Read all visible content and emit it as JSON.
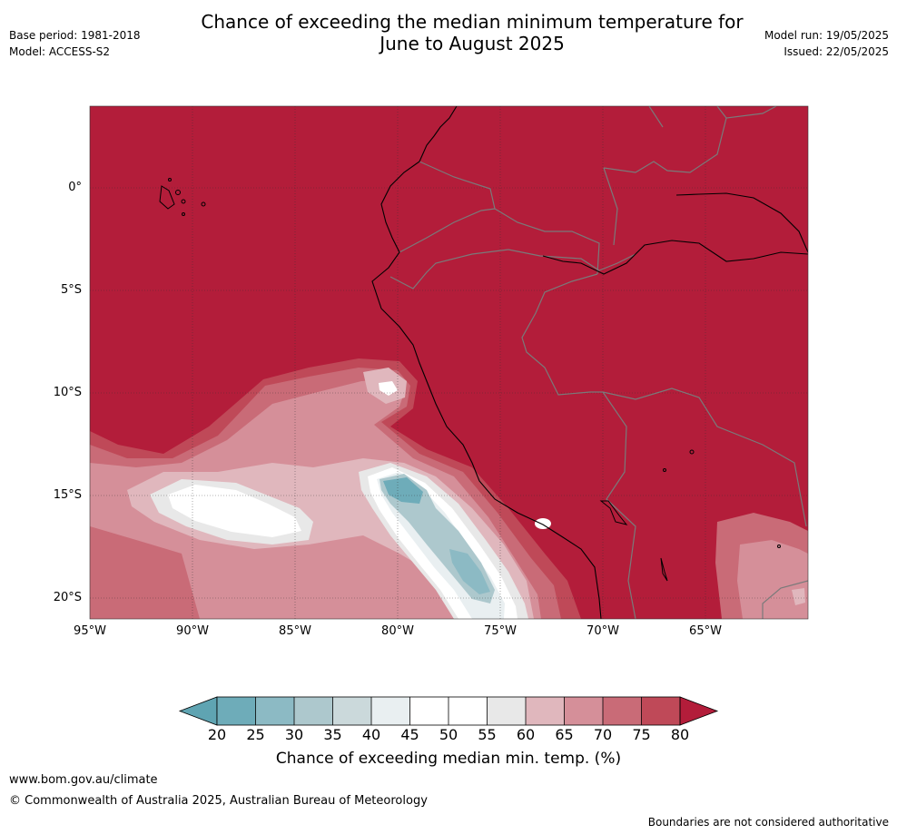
{
  "header": {
    "title_line1": "Chance of exceeding the median minimum temperature for",
    "title_line2": "June to August 2025",
    "base_period": "Base period: 1981-2018",
    "model": "Model: ACCESS-S2",
    "model_run": "Model run: 19/05/2025",
    "issued": "Issued: 22/05/2025"
  },
  "map": {
    "lat_labels": [
      "0°",
      "5°S",
      "10°S",
      "15°S",
      "20°S"
    ],
    "lon_labels": [
      "95°W",
      "90°W",
      "85°W",
      "80°W",
      "75°W",
      "70°W",
      "65°W"
    ],
    "lat_range": [
      -21,
      4
    ],
    "lon_range": [
      -95,
      -60
    ],
    "background_probability_class": "above 80%"
  },
  "colorbar": {
    "ticks": [
      "20",
      "25",
      "30",
      "35",
      "40",
      "45",
      "50",
      "55",
      "60",
      "65",
      "70",
      "75",
      "80"
    ],
    "colors": [
      "#5fa4b2",
      "#6eacb9",
      "#8cbac4",
      "#adc8cd",
      "#cbd9db",
      "#e9eff1",
      "#ffffff",
      "#ffffff",
      "#e8e8e8",
      "#e0b7bd",
      "#d58f99",
      "#c96b77",
      "#bf4958",
      "#b31d3a"
    ],
    "title": "Chance of exceeding median min. temp. (%)"
  },
  "footer": {
    "website": "www.bom.gov.au/climate",
    "copyright": "© Commonwealth of Australia 2025, Australian Bureau of Meteorology",
    "disclaimer": "Boundaries are not considered authoritative"
  }
}
